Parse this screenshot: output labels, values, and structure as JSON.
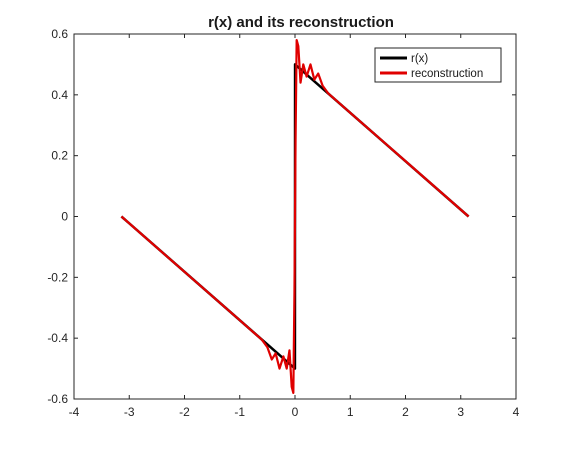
{
  "chart_data": {
    "type": "line",
    "title": "r(x) and its reconstruction",
    "xlabel": "",
    "ylabel": "",
    "xlim": [
      -4,
      4
    ],
    "ylim": [
      -0.6,
      0.6
    ],
    "xticks": [
      -4,
      -3,
      -2,
      -1,
      0,
      1,
      2,
      3,
      4
    ],
    "yticks": [
      -0.6,
      -0.4,
      -0.2,
      0,
      0.2,
      0.4,
      0.6
    ],
    "xtick_labels": [
      "-4",
      "-3",
      "-2",
      "-1",
      "0",
      "1",
      "2",
      "3",
      "4"
    ],
    "ytick_labels": [
      "-0.6",
      "-0.4",
      "-0.2",
      "0",
      "0.2",
      "0.4",
      "0.6"
    ],
    "grid": false,
    "legend_position": "top-right",
    "series": [
      {
        "name": "r(x)",
        "color": "#000000",
        "x": [
          -3.14159,
          -0.001,
          0.001,
          3.14159
        ],
        "y": [
          0.0,
          -0.5,
          0.5,
          0.0
        ]
      },
      {
        "name": "reconstruction",
        "color": "#e00000",
        "x": [
          -3.14159,
          -2.0,
          -1.0,
          -0.6,
          -0.5,
          -0.42,
          -0.35,
          -0.28,
          -0.21,
          -0.15,
          -0.1,
          -0.06,
          -0.03,
          -0.01,
          0.0,
          0.01,
          0.03,
          0.06,
          0.1,
          0.15,
          0.21,
          0.28,
          0.35,
          0.42,
          0.5,
          0.6,
          1.0,
          2.0,
          3.14159
        ],
        "y": [
          0.0,
          -0.182,
          -0.341,
          -0.405,
          -0.43,
          -0.47,
          -0.45,
          -0.5,
          -0.46,
          -0.5,
          -0.44,
          -0.56,
          -0.58,
          -0.25,
          0.0,
          0.25,
          0.58,
          0.56,
          0.44,
          0.5,
          0.46,
          0.5,
          0.45,
          0.47,
          0.43,
          0.405,
          0.341,
          0.182,
          0.0
        ]
      }
    ]
  }
}
